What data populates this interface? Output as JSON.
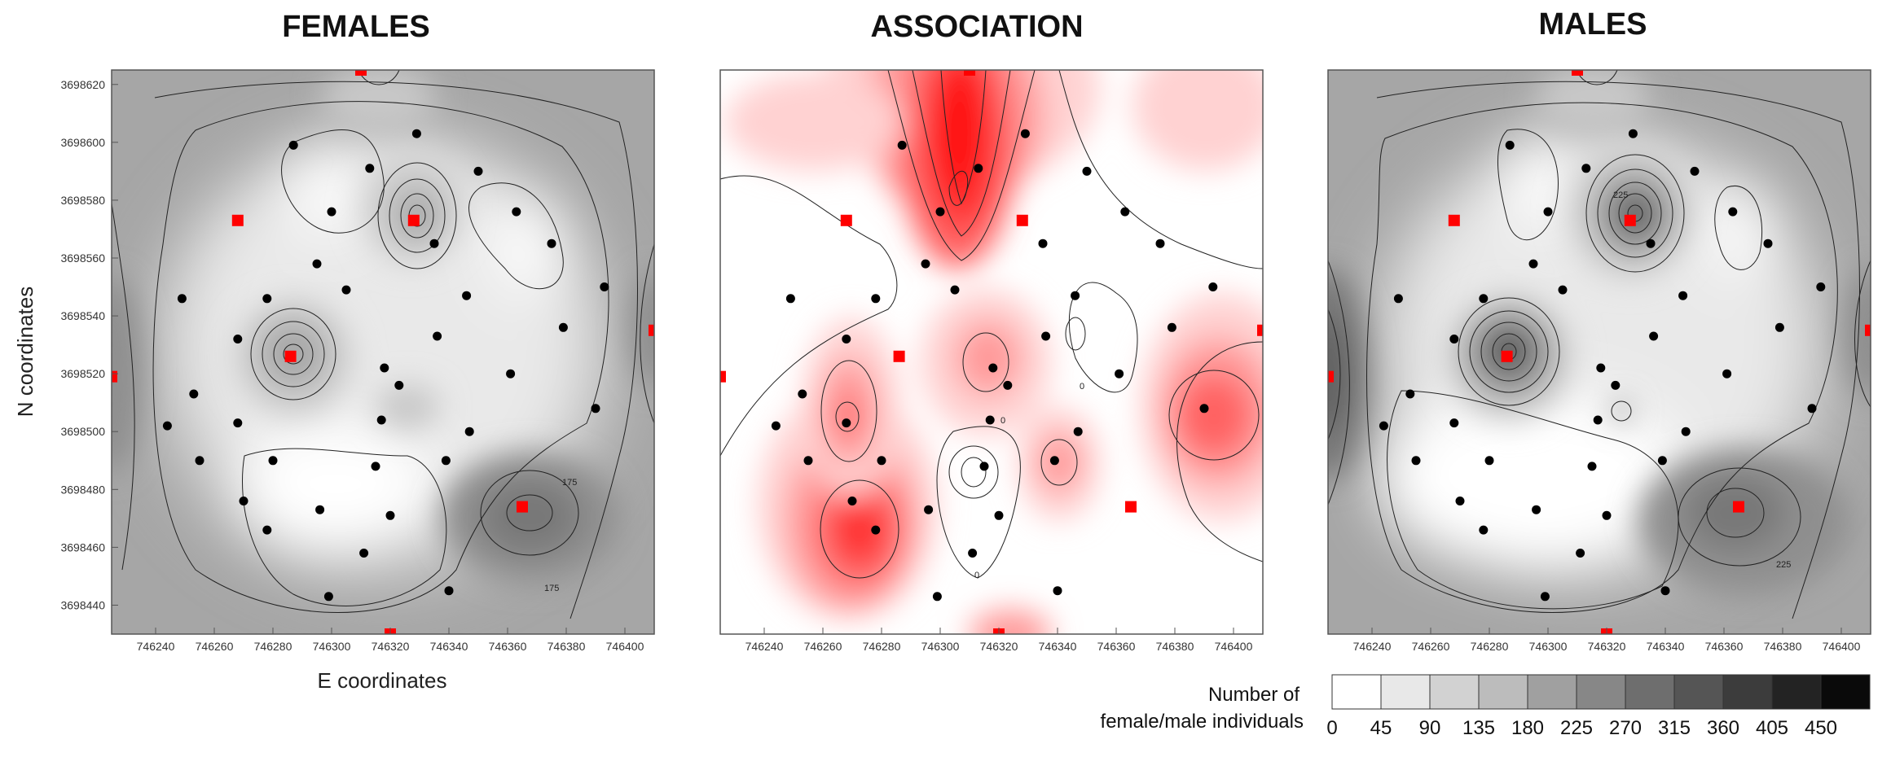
{
  "chart_data": [
    {
      "type": "heatmap",
      "subtype": "filled-contour-map",
      "title": "FEMALES",
      "xlabel": "E coordinates",
      "ylabel": "N coordinates",
      "xlim": [
        746225,
        746410
      ],
      "ylim": [
        3698430,
        3698625
      ],
      "xticks": [
        746240,
        746260,
        746280,
        746300,
        746320,
        746340,
        746360,
        746380,
        746400
      ],
      "yticks": [
        3698440,
        3698460,
        3698480,
        3698500,
        3698520,
        3698540,
        3698560,
        3698580,
        3698600,
        3698620
      ],
      "contour_labels": [
        "175",
        "175"
      ],
      "peaks": [
        {
          "x": 746285,
          "y": 3698526,
          "value": 270
        },
        {
          "x": 746328,
          "y": 3698573,
          "value": 260
        },
        {
          "x": 746365,
          "y": 3698474,
          "value": 215
        },
        {
          "x": 746225,
          "y": 3698519,
          "value": 200
        },
        {
          "x": 746410,
          "y": 3698535,
          "value": 185
        },
        {
          "x": 746310,
          "y": 3698625,
          "value": 180
        }
      ]
    },
    {
      "type": "heatmap",
      "subtype": "filled-contour-map",
      "title": "ASSOCIATION",
      "xlim": [
        746225,
        746410
      ],
      "ylim": [
        3698430,
        3698625
      ],
      "xticks": [
        746240,
        746260,
        746280,
        746300,
        746320,
        746340,
        746360,
        746380,
        746400
      ],
      "contour_labels": [
        "0",
        "0",
        "0"
      ],
      "positive_zones": [
        {
          "x": 746303,
          "y": 3698595,
          "level": 4
        },
        {
          "x": 746276,
          "y": 3698465,
          "level": 3
        },
        {
          "x": 746390,
          "y": 3698507,
          "level": 3
        },
        {
          "x": 746268,
          "y": 3698505,
          "level": 2
        },
        {
          "x": 746313,
          "y": 3698524,
          "level": 2
        },
        {
          "x": 746340,
          "y": 3698489,
          "level": 2
        }
      ]
    },
    {
      "type": "heatmap",
      "subtype": "filled-contour-map",
      "title": "MALES",
      "xlim": [
        746225,
        746410
      ],
      "ylim": [
        3698430,
        3698625
      ],
      "xticks": [
        746240,
        746260,
        746280,
        746300,
        746320,
        746340,
        746360,
        746380,
        746400
      ],
      "contour_labels": [
        "225",
        "225"
      ],
      "peaks": [
        {
          "x": 746328,
          "y": 3698574,
          "value": 360
        },
        {
          "x": 746286,
          "y": 3698527,
          "value": 330
        },
        {
          "x": 746225,
          "y": 3698519,
          "value": 330
        },
        {
          "x": 746365,
          "y": 3698474,
          "value": 270
        },
        {
          "x": 746410,
          "y": 3698535,
          "value": 220
        },
        {
          "x": 746310,
          "y": 3698625,
          "value": 180
        }
      ]
    }
  ],
  "sampling_points": [
    [
      746287,
      3698599
    ],
    [
      746313,
      3698591
    ],
    [
      746329,
      3698603
    ],
    [
      746350,
      3698590
    ],
    [
      746300,
      3698576
    ],
    [
      746363,
      3698576
    ],
    [
      746335,
      3698565
    ],
    [
      746375,
      3698565
    ],
    [
      746295,
      3698558
    ],
    [
      746278,
      3698546
    ],
    [
      746305,
      3698549
    ],
    [
      746249,
      3698546
    ],
    [
      746346,
      3698547
    ],
    [
      746393,
      3698550
    ],
    [
      746268,
      3698532
    ],
    [
      746336,
      3698533
    ],
    [
      746379,
      3698536
    ],
    [
      746318,
      3698522
    ],
    [
      746361,
      3698520
    ],
    [
      746253,
      3698513
    ],
    [
      746323,
      3698516
    ],
    [
      746244,
      3698502
    ],
    [
      746268,
      3698503
    ],
    [
      746317,
      3698504
    ],
    [
      746347,
      3698500
    ],
    [
      746390,
      3698508
    ],
    [
      746255,
      3698490
    ],
    [
      746280,
      3698490
    ],
    [
      746315,
      3698488
    ],
    [
      746339,
      3698490
    ],
    [
      746270,
      3698476
    ],
    [
      746296,
      3698473
    ],
    [
      746320,
      3698471
    ],
    [
      746278,
      3698466
    ],
    [
      746311,
      3698458
    ],
    [
      746299,
      3698443
    ],
    [
      746340,
      3698445
    ]
  ],
  "red_markers": [
    [
      746310,
      3698625
    ],
    [
      746268,
      3698573
    ],
    [
      746328,
      3698573
    ],
    [
      746286,
      3698526
    ],
    [
      746225,
      3698519
    ],
    [
      746410,
      3698535
    ],
    [
      746365,
      3698474
    ],
    [
      746320,
      3698430
    ]
  ],
  "legend": {
    "title_line1": "Number of",
    "title_line2": "female/male individuals",
    "labels": [
      "0",
      "45",
      "90",
      "135",
      "180",
      "225",
      "270",
      "315",
      "360",
      "405",
      "450"
    ],
    "colors": [
      "#ffffff",
      "#e8e8e8",
      "#d2d2d2",
      "#bcbcbc",
      "#a0a0a0",
      "#878787",
      "#6e6e6e",
      "#555555",
      "#3c3c3c",
      "#232323",
      "#0a0a0a"
    ]
  },
  "colors": {
    "grey_levels": [
      "#ffffff",
      "#e9e9e9",
      "#d4d4d4",
      "#bebebe",
      "#a6a6a6",
      "#8f8f8f",
      "#787878",
      "#616161",
      "#4a4a4a",
      "#333333"
    ],
    "red_levels": [
      "#ffffff",
      "#ffd2d2",
      "#ff9a9a",
      "#ff6262",
      "#ff2e2e",
      "#ff0000"
    ],
    "marker": "#ff0000",
    "point": "#000000"
  }
}
